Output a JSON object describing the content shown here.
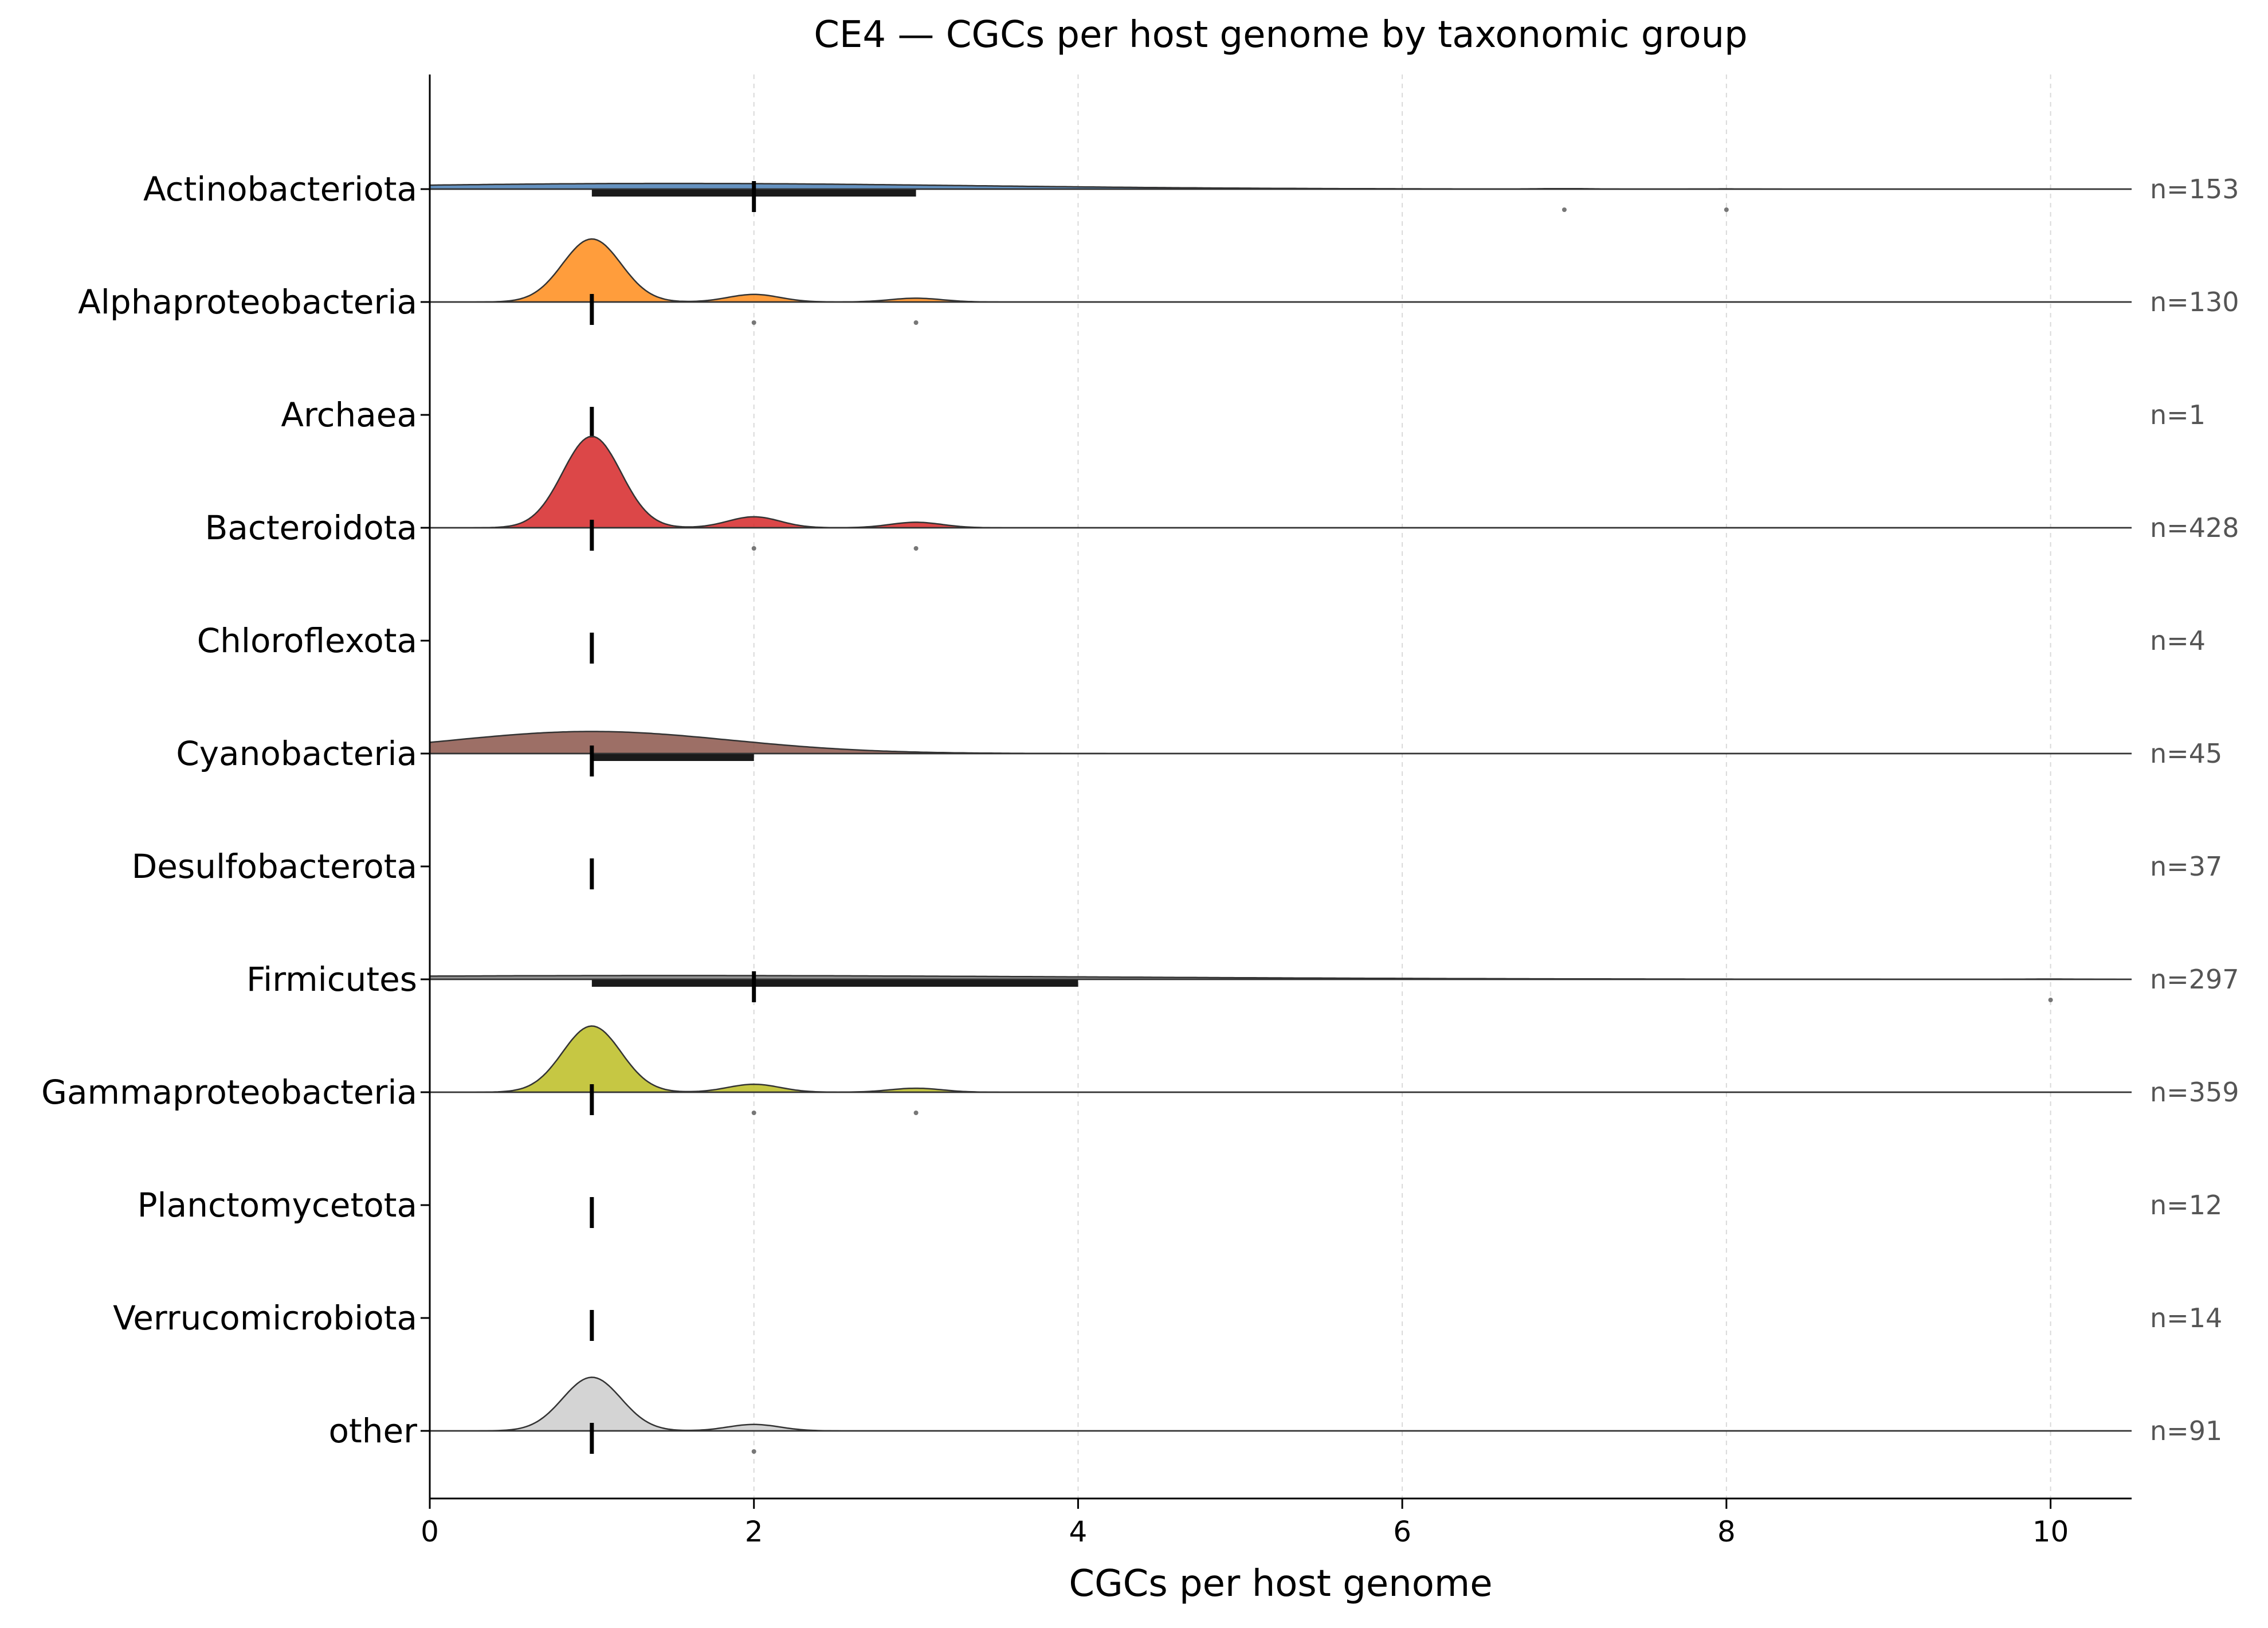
{
  "chart_data": {
    "type": "ridgeline",
    "title": "CE4 — CGCs per host genome by taxonomic group",
    "xlabel": "CGCs per host genome",
    "ylabel": "",
    "xlim": [
      0,
      10.5
    ],
    "xticks": [
      0,
      2,
      4,
      6,
      8,
      10
    ],
    "grid": "vertical dashed at x ticks",
    "categories": [
      "Actinobacteriota",
      "Alphaproteobacteria",
      "Archaea",
      "Bacteroidota",
      "Chloroflexota",
      "Cyanobacteria",
      "Desulfobacterota",
      "Firmicutes",
      "Gammaproteobacteria",
      "Planctomycetota",
      "Verrucomicrobiota",
      "other"
    ],
    "series": [
      {
        "name": "Actinobacteriota",
        "n_label": "n=153",
        "color": "#4a7fb5",
        "has_density": true,
        "density_peak_scale": 0.09,
        "median": 2,
        "iqr": [
          1,
          3
        ],
        "outliers": [
          7,
          8
        ]
      },
      {
        "name": "Alphaproteobacteria",
        "n_label": "n=130",
        "color": "#ff8c1a",
        "has_density": true,
        "density_peak_scale": 1.0,
        "median": 1,
        "iqr": [
          1,
          1
        ],
        "outliers": [
          2,
          3
        ]
      },
      {
        "name": "Archaea",
        "n_label": "n=1",
        "color": "#9ecae1",
        "has_density": false,
        "median": 1,
        "iqr": [
          1,
          1
        ],
        "outliers": []
      },
      {
        "name": "Bacteroidota",
        "n_label": "n=428",
        "color": "#d62728",
        "has_density": true,
        "density_peak_scale": 1.45,
        "median": 1,
        "iqr": [
          1,
          1
        ],
        "outliers": [
          2,
          3
        ]
      },
      {
        "name": "Chloroflexota",
        "n_label": "n=4",
        "color": "#9467bd",
        "has_density": false,
        "median": 1,
        "iqr": [
          1,
          1
        ],
        "outliers": []
      },
      {
        "name": "Cyanobacteria",
        "n_label": "n=45",
        "color": "#8c564b",
        "has_density": true,
        "density_peak_scale": 0.35,
        "median": 1,
        "iqr": [
          1,
          2
        ],
        "outliers": []
      },
      {
        "name": "Desulfobacterota",
        "n_label": "n=37",
        "color": "#e377c2",
        "has_density": false,
        "median": 1,
        "iqr": [
          1,
          1
        ],
        "outliers": []
      },
      {
        "name": "Firmicutes",
        "n_label": "n=297",
        "color": "#7f7f7f",
        "has_density": true,
        "density_peak_scale": 0.06,
        "median": 2,
        "iqr": [
          1,
          4
        ],
        "outliers": [
          10
        ]
      },
      {
        "name": "Gammaproteobacteria",
        "n_label": "n=359",
        "color": "#bcbd22",
        "has_density": true,
        "density_peak_scale": 1.05,
        "median": 1,
        "iqr": [
          1,
          1
        ],
        "outliers": [
          2,
          3
        ]
      },
      {
        "name": "Planctomycetota",
        "n_label": "n=12",
        "color": "#17becf",
        "has_density": false,
        "median": 1,
        "iqr": [
          1,
          1
        ],
        "outliers": []
      },
      {
        "name": "Verrucomicrobiota",
        "n_label": "n=14",
        "color": "#aec7e8",
        "has_density": false,
        "median": 1,
        "iqr": [
          1,
          1
        ],
        "outliers": []
      },
      {
        "name": "other",
        "n_label": "n=91",
        "color": "#cccccc",
        "has_density": true,
        "density_peak_scale": 0.85,
        "median": 1,
        "iqr": [
          1,
          1
        ],
        "outliers": [
          2
        ]
      }
    ]
  }
}
